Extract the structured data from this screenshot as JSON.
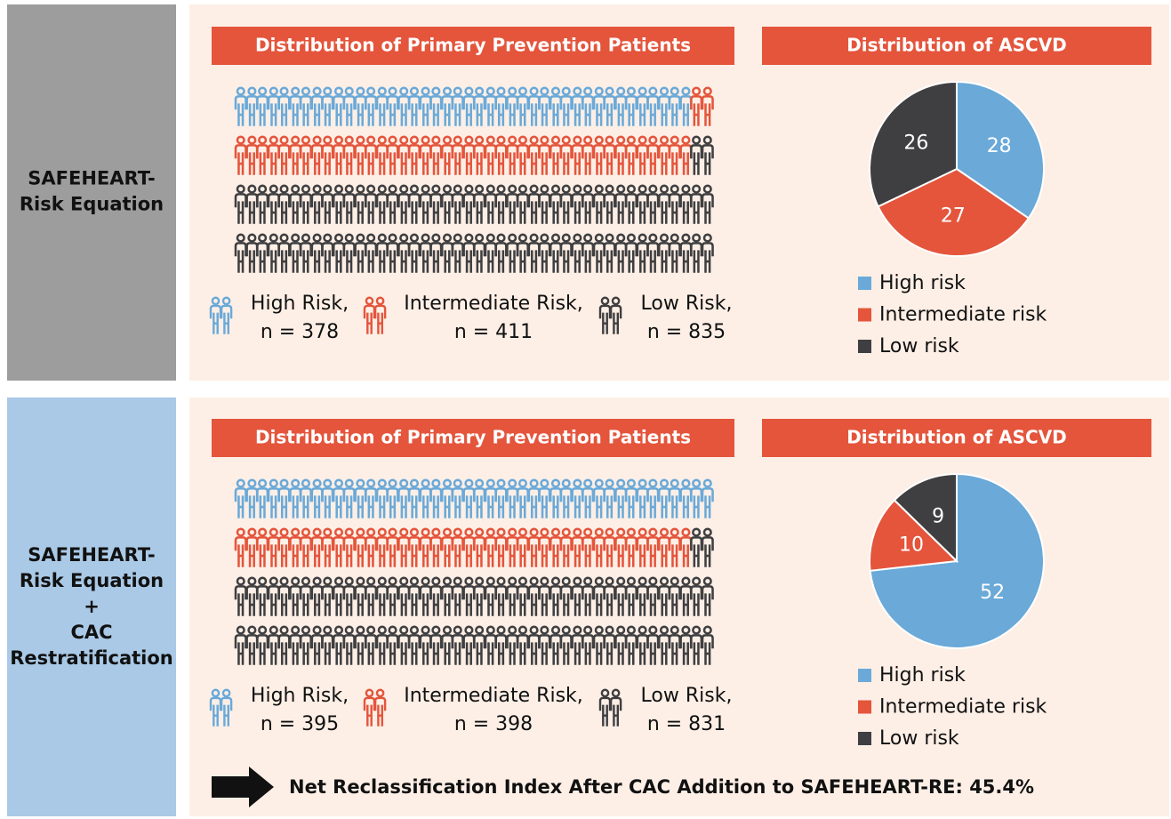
{
  "chart_data": [
    {
      "type": "pie",
      "title": "Distribution of ASCVD",
      "categories": [
        "High risk",
        "Intermediate risk",
        "Low risk"
      ],
      "values": [
        28,
        27,
        26
      ],
      "colors": [
        "#6aa9d8",
        "#e4553c",
        "#3f3f41"
      ]
    },
    {
      "type": "pie",
      "title": "Distribution of ASCVD",
      "categories": [
        "High risk",
        "Intermediate risk",
        "Low risk"
      ],
      "values": [
        52,
        10,
        9
      ],
      "colors": [
        "#6aa9d8",
        "#e4553c",
        "#3f3f41"
      ]
    }
  ],
  "panels": [
    {
      "label": [
        "SAFEHEART-",
        "Risk Equation"
      ],
      "title": "Distribution of Primary Prevention Patients",
      "groups": [
        "High Risk,",
        "Intermediate Risk,",
        "Low Risk,"
      ],
      "values": [
        378,
        411,
        835
      ],
      "value_labels": [
        "n = 378",
        "n = 411",
        "n = 835"
      ],
      "colors": [
        "#6aa9d8",
        "#e4553c",
        "#3f3f41"
      ]
    },
    {
      "label": [
        "SAFEHEART-",
        "Risk Equation",
        "+",
        "CAC",
        "Restratification"
      ],
      "title": "Distribution of Primary Prevention Patients",
      "groups": [
        "High Risk,",
        "Intermediate Risk,",
        "Low Risk,"
      ],
      "values": [
        395,
        398,
        831
      ],
      "value_labels": [
        "n = 395",
        "n = 398",
        "n = 831"
      ],
      "colors": [
        "#6aa9d8",
        "#e4553c",
        "#3f3f41"
      ]
    }
  ],
  "footer": "Net Reclassification Index After CAC Addition to SAFEHEART-RE: 45.4%"
}
